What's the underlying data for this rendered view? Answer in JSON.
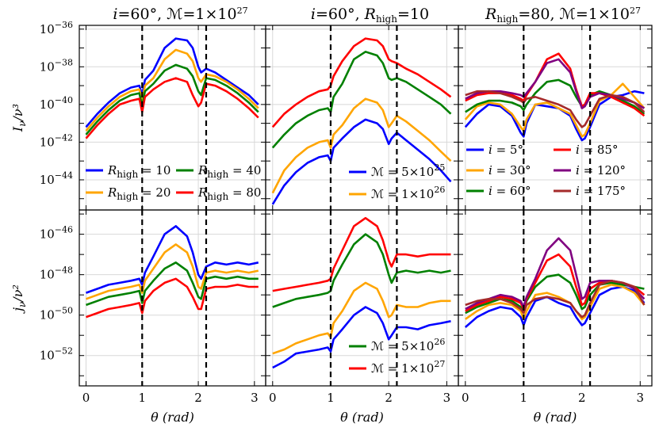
{
  "figure": {
    "xlabel": "θ (rad)",
    "top_row_ylabel": "I_ν/ν³",
    "bottom_row_ylabel": "j_ν/ν²"
  },
  "chart_data": [
    {
      "type": "line",
      "panel": "top-left",
      "title": "i=60°, ℳ=1×10^27",
      "xlabel": "",
      "ylabel": "I_ν/ν³",
      "xlim": [
        -0.12,
        3.2
      ],
      "ylim_log10": [
        -45.6,
        -35.8
      ],
      "yscale": "log",
      "x_ticks": [
        "0",
        "1",
        "2",
        "3"
      ],
      "y_ticks": [
        "10^-44",
        "10^-42",
        "10^-40",
        "10^-38",
        "10^-36"
      ],
      "vlines": [
        1.0,
        2.14
      ],
      "legend": "lower-center, 2 columns",
      "x": [
        0.0,
        0.2,
        0.4,
        0.6,
        0.8,
        0.95,
        1.0,
        1.05,
        1.2,
        1.4,
        1.6,
        1.8,
        1.9,
        2.0,
        2.05,
        2.14,
        2.3,
        2.5,
        2.7,
        2.9,
        3.07
      ],
      "series": [
        {
          "name": "R_high = 10",
          "color": "#0000ff",
          "log10_values": [
            -41.2,
            -40.5,
            -39.9,
            -39.4,
            -39.1,
            -39.0,
            -39.5,
            -38.7,
            -38.2,
            -37.0,
            -36.5,
            -36.6,
            -37.0,
            -38.0,
            -38.3,
            -38.1,
            -38.3,
            -38.7,
            -39.1,
            -39.5,
            -40.0
          ]
        },
        {
          "name": "R_high = 20",
          "color": "#ffa500",
          "log10_values": [
            -41.4,
            -40.7,
            -40.1,
            -39.6,
            -39.3,
            -39.2,
            -39.8,
            -39.0,
            -38.6,
            -37.6,
            -37.1,
            -37.3,
            -37.7,
            -38.6,
            -38.8,
            -38.4,
            -38.5,
            -38.8,
            -39.2,
            -39.7,
            -40.2
          ]
        },
        {
          "name": "R_high = 40",
          "color": "#008000",
          "log10_values": [
            -41.6,
            -40.9,
            -40.3,
            -39.8,
            -39.5,
            -39.4,
            -40.1,
            -39.3,
            -38.9,
            -38.2,
            -37.9,
            -38.1,
            -38.5,
            -39.3,
            -39.5,
            -38.6,
            -38.7,
            -39.0,
            -39.4,
            -39.9,
            -40.4
          ]
        },
        {
          "name": "R_high = 80",
          "color": "#ff0000",
          "log10_values": [
            -41.8,
            -41.1,
            -40.5,
            -40.0,
            -39.8,
            -39.7,
            -40.4,
            -39.6,
            -39.2,
            -38.8,
            -38.6,
            -38.8,
            -39.5,
            -40.1,
            -39.9,
            -38.9,
            -39.0,
            -39.3,
            -39.7,
            -40.2,
            -40.7
          ]
        }
      ]
    },
    {
      "type": "line",
      "panel": "top-middle",
      "title": "i=60°, R_high=10",
      "xlabel": "",
      "ylabel": "",
      "xlim": [
        -0.12,
        3.2
      ],
      "ylim_log10": [
        -45.6,
        -35.8
      ],
      "yscale": "log",
      "x_ticks": [
        "0",
        "1",
        "2",
        "3"
      ],
      "vlines": [
        1.0,
        2.14
      ],
      "legend": "lower-right",
      "x": [
        0.0,
        0.2,
        0.4,
        0.6,
        0.8,
        0.95,
        1.0,
        1.05,
        1.2,
        1.4,
        1.6,
        1.8,
        1.9,
        2.0,
        2.05,
        2.14,
        2.3,
        2.5,
        2.7,
        2.9,
        3.07
      ],
      "series": [
        {
          "name": "ℳ = 5×10^25",
          "color": "#0000ff",
          "log10_values": [
            -45.3,
            -44.3,
            -43.6,
            -43.1,
            -42.8,
            -42.7,
            -43.0,
            -42.3,
            -41.8,
            -41.2,
            -40.8,
            -41.0,
            -41.3,
            -42.1,
            -41.8,
            -41.5,
            -41.9,
            -42.4,
            -42.9,
            -43.5,
            -44.1
          ]
        },
        {
          "name": "ℳ = 1×10^26",
          "color": "#ffa500",
          "log10_values": [
            -44.7,
            -43.5,
            -42.8,
            -42.3,
            -42.0,
            -41.9,
            -42.3,
            -41.6,
            -41.1,
            -40.2,
            -39.7,
            -39.9,
            -40.3,
            -41.2,
            -41.0,
            -40.6,
            -40.9,
            -41.4,
            -41.9,
            -42.5,
            -43.0
          ]
        },
        {
          "name": "ℳ = 5×10^26",
          "color": "#008000",
          "log10_values": [
            -42.3,
            -41.6,
            -41.0,
            -40.6,
            -40.3,
            -40.2,
            -40.4,
            -39.6,
            -38.9,
            -37.6,
            -37.2,
            -37.4,
            -37.8,
            -38.6,
            -38.7,
            -38.6,
            -38.8,
            -39.2,
            -39.6,
            -40.0,
            -40.5
          ]
        },
        {
          "name": "ℳ = 1×10^27",
          "color": "#ff0000",
          "log10_values": [
            -41.2,
            -40.5,
            -40.0,
            -39.6,
            -39.3,
            -39.2,
            -39.0,
            -38.5,
            -37.7,
            -36.9,
            -36.5,
            -36.6,
            -36.9,
            -37.6,
            -37.7,
            -37.8,
            -38.1,
            -38.4,
            -38.8,
            -39.2,
            -39.6
          ]
        }
      ]
    },
    {
      "type": "line",
      "panel": "top-right",
      "title": "R_high=80, ℳ=1×10^27",
      "xlabel": "",
      "ylabel": "",
      "xlim": [
        -0.12,
        3.2
      ],
      "ylim_log10": [
        -45.6,
        -35.8
      ],
      "yscale": "log",
      "x_ticks": [
        "0",
        "1",
        "2",
        "3"
      ],
      "vlines": [
        1.0,
        2.14
      ],
      "legend": "lower-center, 2 columns",
      "x": [
        0.0,
        0.2,
        0.4,
        0.6,
        0.8,
        0.95,
        1.0,
        1.05,
        1.2,
        1.4,
        1.6,
        1.8,
        1.9,
        2.0,
        2.05,
        2.14,
        2.3,
        2.5,
        2.7,
        2.9,
        3.07
      ],
      "series": [
        {
          "name": "i = 5°",
          "color": "#0000ff",
          "log10_values": [
            -41.2,
            -40.5,
            -40.0,
            -40.1,
            -40.6,
            -41.5,
            -41.7,
            -41.0,
            -40.0,
            -40.1,
            -40.2,
            -40.6,
            -41.3,
            -41.9,
            -41.8,
            -41.2,
            -40.0,
            -39.6,
            -39.5,
            -39.3,
            -39.4
          ]
        },
        {
          "name": "i = 30°",
          "color": "#ffa500",
          "log10_values": [
            -40.8,
            -40.1,
            -39.9,
            -40.0,
            -40.5,
            -41.2,
            -41.4,
            -40.8,
            -40.0,
            -39.9,
            -40.2,
            -40.5,
            -41.1,
            -41.7,
            -41.6,
            -41.0,
            -39.8,
            -39.5,
            -38.9,
            -39.6,
            -40.2
          ]
        },
        {
          "name": "i = 60°",
          "color": "#008000",
          "log10_values": [
            -40.4,
            -40.0,
            -39.8,
            -39.8,
            -39.9,
            -40.1,
            -40.3,
            -40.0,
            -39.4,
            -38.8,
            -38.7,
            -39.0,
            -39.6,
            -40.1,
            -40.0,
            -39.5,
            -39.3,
            -39.5,
            -39.8,
            -40.1,
            -40.5
          ]
        },
        {
          "name": "i = 85°",
          "color": "#ff0000",
          "log10_values": [
            -39.8,
            -39.5,
            -39.4,
            -39.4,
            -39.5,
            -39.7,
            -39.8,
            -39.5,
            -38.8,
            -37.6,
            -37.3,
            -38.1,
            -39.2,
            -40.1,
            -40.0,
            -39.4,
            -39.4,
            -39.6,
            -39.9,
            -40.2,
            -40.6
          ]
        },
        {
          "name": "i = 120°",
          "color": "#800080",
          "log10_values": [
            -39.7,
            -39.4,
            -39.3,
            -39.3,
            -39.4,
            -39.5,
            -39.6,
            -39.4,
            -38.8,
            -37.8,
            -37.6,
            -38.3,
            -39.3,
            -40.2,
            -40.1,
            -39.6,
            -39.4,
            -39.5,
            -39.7,
            -39.9,
            -40.2
          ]
        },
        {
          "name": "i = 175°",
          "color": "#a52a2a",
          "log10_values": [
            -39.5,
            -39.3,
            -39.3,
            -39.4,
            -39.6,
            -39.8,
            -39.9,
            -39.7,
            -39.6,
            -39.8,
            -40.0,
            -40.3,
            -40.8,
            -41.2,
            -41.1,
            -40.6,
            -39.7,
            -39.5,
            -39.6,
            -39.9,
            -40.4
          ]
        }
      ]
    },
    {
      "type": "line",
      "panel": "bottom-left",
      "title": "",
      "xlabel": "θ (rad)",
      "ylabel": "j_ν/ν²",
      "xlim": [
        -0.12,
        3.2
      ],
      "ylim_log10": [
        -53.5,
        -44.8
      ],
      "yscale": "log",
      "x_ticks": [
        "0",
        "1",
        "2",
        "3"
      ],
      "y_ticks": [
        "10^-52",
        "10^-50",
        "10^-48",
        "10^-46"
      ],
      "vlines": [
        1.0,
        2.14
      ],
      "x": [
        0.0,
        0.2,
        0.4,
        0.6,
        0.8,
        0.95,
        1.0,
        1.05,
        1.2,
        1.4,
        1.6,
        1.8,
        1.9,
        2.0,
        2.05,
        2.14,
        2.3,
        2.5,
        2.7,
        2.9,
        3.07
      ],
      "series": [
        {
          "name": "R_high = 10",
          "color": "#0000ff",
          "log10_values": [
            -48.9,
            -48.7,
            -48.5,
            -48.4,
            -48.3,
            -48.2,
            -48.5,
            -47.9,
            -47.1,
            -46.0,
            -45.6,
            -46.1,
            -46.9,
            -48.0,
            -48.2,
            -47.6,
            -47.4,
            -47.5,
            -47.4,
            -47.5,
            -47.4
          ]
        },
        {
          "name": "R_high = 20",
          "color": "#ffa500",
          "log10_values": [
            -49.2,
            -49.0,
            -48.8,
            -48.7,
            -48.6,
            -48.5,
            -48.9,
            -48.3,
            -47.7,
            -46.9,
            -46.5,
            -46.9,
            -47.6,
            -48.6,
            -48.7,
            -47.9,
            -47.8,
            -47.9,
            -47.8,
            -47.9,
            -47.8
          ]
        },
        {
          "name": "R_high = 40",
          "color": "#008000",
          "log10_values": [
            -49.5,
            -49.3,
            -49.1,
            -49.0,
            -48.9,
            -48.8,
            -49.4,
            -48.8,
            -48.3,
            -47.7,
            -47.4,
            -47.8,
            -48.4,
            -49.1,
            -49.2,
            -48.2,
            -48.1,
            -48.2,
            -48.1,
            -48.2,
            -48.2
          ]
        },
        {
          "name": "R_high = 80",
          "color": "#ff0000",
          "log10_values": [
            -50.1,
            -49.9,
            -49.7,
            -49.6,
            -49.5,
            -49.4,
            -49.9,
            -49.3,
            -48.8,
            -48.4,
            -48.2,
            -48.6,
            -49.1,
            -49.7,
            -49.7,
            -48.7,
            -48.6,
            -48.6,
            -48.5,
            -48.6,
            -48.6
          ]
        }
      ]
    },
    {
      "type": "line",
      "panel": "bottom-middle",
      "title": "",
      "xlabel": "θ (rad)",
      "ylabel": "",
      "xlim": [
        -0.12,
        3.2
      ],
      "ylim_log10": [
        -53.5,
        -44.8
      ],
      "yscale": "log",
      "x_ticks": [
        "0",
        "1",
        "2",
        "3"
      ],
      "vlines": [
        1.0,
        2.14
      ],
      "legend": "lower-right",
      "x": [
        0.0,
        0.2,
        0.4,
        0.6,
        0.8,
        0.95,
        1.0,
        1.05,
        1.2,
        1.4,
        1.6,
        1.8,
        1.9,
        2.0,
        2.05,
        2.14,
        2.3,
        2.5,
        2.7,
        2.9,
        3.07
      ],
      "series": [
        {
          "name": "ℳ = 5×10^25",
          "color": "#0000ff",
          "log10_values": [
            -52.6,
            -52.3,
            -51.9,
            -51.8,
            -51.7,
            -51.6,
            -51.8,
            -51.2,
            -50.7,
            -50.0,
            -49.6,
            -49.9,
            -50.4,
            -51.2,
            -51.0,
            -50.6,
            -50.6,
            -50.7,
            -50.5,
            -50.4,
            -50.3
          ]
        },
        {
          "name": "ℳ = 1×10^26",
          "color": "#ffa500",
          "log10_values": [
            -51.9,
            -51.7,
            -51.4,
            -51.2,
            -51.0,
            -50.9,
            -51.1,
            -50.4,
            -49.8,
            -48.8,
            -48.4,
            -48.7,
            -49.3,
            -50.1,
            -50.0,
            -49.5,
            -49.6,
            -49.6,
            -49.4,
            -49.3,
            -49.3
          ]
        },
        {
          "name": "ℳ = 5×10^26",
          "color": "#008000",
          "log10_values": [
            -49.6,
            -49.4,
            -49.2,
            -49.1,
            -49.0,
            -48.9,
            -48.8,
            -48.3,
            -47.5,
            -46.5,
            -46.0,
            -46.4,
            -47.0,
            -48.0,
            -48.4,
            -47.9,
            -47.8,
            -47.9,
            -47.8,
            -47.9,
            -47.8
          ]
        },
        {
          "name": "ℳ = 1×10^27",
          "color": "#ff0000",
          "log10_values": [
            -48.8,
            -48.7,
            -48.6,
            -48.5,
            -48.4,
            -48.3,
            -48.2,
            -47.7,
            -46.8,
            -45.6,
            -45.2,
            -45.6,
            -46.3,
            -47.3,
            -47.6,
            -47.0,
            -47.0,
            -47.1,
            -47.0,
            -47.0,
            -47.0
          ]
        }
      ]
    },
    {
      "type": "line",
      "panel": "bottom-right",
      "title": "",
      "xlabel": "θ (rad)",
      "ylabel": "",
      "xlim": [
        -0.12,
        3.2
      ],
      "ylim_log10": [
        -53.5,
        -44.8
      ],
      "yscale": "log",
      "x_ticks": [
        "0",
        "1",
        "2",
        "3"
      ],
      "vlines": [
        1.0,
        2.14
      ],
      "x": [
        0.0,
        0.2,
        0.4,
        0.6,
        0.8,
        0.95,
        1.0,
        1.05,
        1.2,
        1.4,
        1.6,
        1.8,
        1.9,
        2.0,
        2.05,
        2.14,
        2.3,
        2.5,
        2.7,
        2.9,
        3.07
      ],
      "series": [
        {
          "name": "i = 5°",
          "color": "#0000ff",
          "log10_values": [
            -50.6,
            -50.1,
            -49.8,
            -49.6,
            -49.7,
            -50.1,
            -50.5,
            -50.1,
            -49.3,
            -49.1,
            -49.4,
            -49.6,
            -50.1,
            -50.5,
            -50.4,
            -49.9,
            -49.0,
            -48.7,
            -48.6,
            -48.8,
            -49.4
          ]
        },
        {
          "name": "i = 30°",
          "color": "#ffa500",
          "log10_values": [
            -50.2,
            -49.8,
            -49.5,
            -49.4,
            -49.5,
            -49.8,
            -50.2,
            -49.8,
            -49.0,
            -48.9,
            -49.1,
            -49.4,
            -49.8,
            -50.2,
            -50.1,
            -49.6,
            -48.7,
            -48.5,
            -48.6,
            -48.9,
            -49.5
          ]
        },
        {
          "name": "i = 60°",
          "color": "#008000",
          "log10_values": [
            -49.9,
            -49.6,
            -49.4,
            -49.2,
            -49.3,
            -49.6,
            -49.8,
            -49.3,
            -48.6,
            -48.1,
            -48.0,
            -48.4,
            -49.0,
            -49.7,
            -49.6,
            -49.0,
            -48.5,
            -48.4,
            -48.5,
            -48.6,
            -48.7
          ]
        },
        {
          "name": "i = 85°",
          "color": "#ff0000",
          "log10_values": [
            -49.8,
            -49.5,
            -49.3,
            -49.1,
            -49.2,
            -49.4,
            -49.7,
            -49.2,
            -48.4,
            -47.3,
            -47.0,
            -47.6,
            -48.6,
            -49.5,
            -49.4,
            -48.7,
            -48.4,
            -48.3,
            -48.4,
            -48.6,
            -49.0
          ]
        },
        {
          "name": "i = 120°",
          "color": "#800080",
          "log10_values": [
            -49.7,
            -49.4,
            -49.2,
            -49.0,
            -49.1,
            -49.3,
            -49.6,
            -49.1,
            -48.2,
            -46.8,
            -46.2,
            -46.8,
            -48.0,
            -49.2,
            -49.1,
            -48.4,
            -48.3,
            -48.3,
            -48.4,
            -48.7,
            -49.2
          ]
        },
        {
          "name": "i = 175°",
          "color": "#a52a2a",
          "log10_values": [
            -49.5,
            -49.3,
            -49.2,
            -49.2,
            -49.4,
            -49.7,
            -49.9,
            -49.5,
            -49.2,
            -49.1,
            -49.2,
            -49.4,
            -49.8,
            -50.1,
            -50.0,
            -49.4,
            -48.5,
            -48.3,
            -48.4,
            -48.6,
            -49.5
          ]
        }
      ]
    }
  ]
}
